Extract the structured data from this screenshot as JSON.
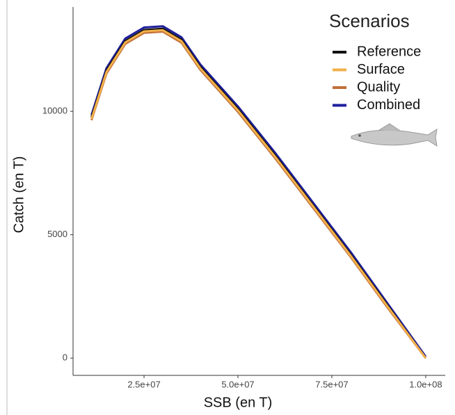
{
  "chart_data": {
    "type": "line",
    "xlabel": "SSB (en T)",
    "ylabel": "Catch (en T)",
    "legend_title": "Scenarios",
    "legend": "top-right",
    "x": [
      11000000,
      15000000,
      20000000,
      25000000,
      30000000,
      35000000,
      40000000,
      50000000,
      60000000,
      70000000,
      80000000,
      90000000,
      100000000
    ],
    "series": [
      {
        "name": "Combined",
        "color": "#1f1f9e",
        "values": [
          9850,
          11750,
          12950,
          13400,
          13450,
          13000,
          11900,
          10200,
          8300,
          6300,
          4300,
          2180,
          60
        ]
      },
      {
        "name": "Reference",
        "color": "#111111",
        "values": [
          9750,
          11650,
          12850,
          13300,
          13350,
          12900,
          11800,
          10100,
          8200,
          6200,
          4200,
          2100,
          0
        ]
      },
      {
        "name": "Quality",
        "color": "#c0703a",
        "values": [
          9640,
          11530,
          12730,
          13180,
          13230,
          12780,
          11680,
          9980,
          8080,
          6090,
          4100,
          2010,
          0
        ]
      },
      {
        "name": "Surface",
        "color": "#f2b04a",
        "values": [
          9690,
          11590,
          12790,
          13240,
          13290,
          12840,
          11740,
          10040,
          8140,
          6150,
          4150,
          2060,
          0
        ]
      }
    ],
    "xlim": [
      6100000,
      105200000
    ],
    "xticks": [
      {
        "value": 25000000,
        "label": "2.5e+07"
      },
      {
        "value": 50000000,
        "label": "5.0e+07"
      },
      {
        "value": 75000000,
        "label": "7.5e+07"
      },
      {
        "value": 100000000,
        "label": "1.0e+08"
      }
    ],
    "ylim": [
      -700,
      14230
    ],
    "yticks": [
      0,
      5000,
      10000
    ],
    "legend_order": [
      1,
      3,
      2,
      0
    ]
  }
}
